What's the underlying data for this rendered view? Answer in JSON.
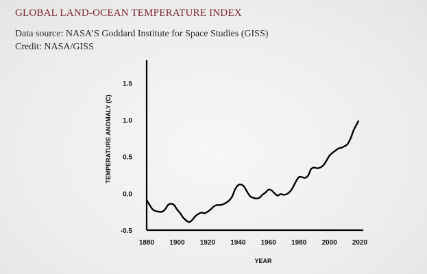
{
  "header": {
    "title": "GLOBAL LAND-OCEAN TEMPERATURE INDEX",
    "source": "Data source: NASA’S Goddard Institute for Space Studies  (GISS)",
    "credit": "Credit: NASA/GISS"
  },
  "colors": {
    "title": "#7a1f2b",
    "line": "#000000",
    "axis": "#000000"
  },
  "chart_data": {
    "type": "line",
    "title": "",
    "xlabel": "YEAR",
    "ylabel": "TEMPERATURE ANOMALY (C)",
    "xlim": [
      1880,
      2020
    ],
    "ylim": [
      -0.5,
      1.5
    ],
    "xticks": [
      "1880",
      "1900",
      "1920",
      "1940",
      "1960",
      "1980",
      "2000",
      "2020"
    ],
    "yticks": [
      "-0.5",
      "0.0",
      "0.5",
      "1.0",
      "1.5"
    ],
    "grid": false,
    "series": [
      {
        "x": [
          1880,
          1882,
          1884,
          1886,
          1888,
          1890,
          1892,
          1894,
          1896,
          1898,
          1900,
          1902,
          1904,
          1906,
          1908,
          1910,
          1912,
          1914,
          1916,
          1918,
          1920,
          1922,
          1924,
          1926,
          1928,
          1930,
          1932,
          1934,
          1936,
          1938,
          1940,
          1942,
          1944,
          1946,
          1948,
          1950,
          1952,
          1954,
          1956,
          1958,
          1960,
          1962,
          1964,
          1966,
          1968,
          1970,
          1972,
          1974,
          1976,
          1978,
          1980,
          1982,
          1984,
          1986,
          1988,
          1990,
          1992,
          1994,
          1996,
          1998,
          2000,
          2002,
          2004,
          2006,
          2008,
          2010,
          2012,
          2014,
          2016,
          2018,
          2019
        ],
        "y": [
          -0.09,
          -0.16,
          -0.22,
          -0.24,
          -0.25,
          -0.25,
          -0.22,
          -0.16,
          -0.14,
          -0.16,
          -0.22,
          -0.27,
          -0.33,
          -0.37,
          -0.39,
          -0.36,
          -0.31,
          -0.28,
          -0.26,
          -0.27,
          -0.25,
          -0.22,
          -0.18,
          -0.16,
          -0.16,
          -0.15,
          -0.13,
          -0.1,
          -0.05,
          0.05,
          0.11,
          0.12,
          0.09,
          0.02,
          -0.04,
          -0.06,
          -0.07,
          -0.06,
          -0.02,
          0.01,
          0.05,
          0.04,
          0.0,
          -0.03,
          -0.01,
          -0.02,
          -0.01,
          0.02,
          0.08,
          0.16,
          0.22,
          0.22,
          0.21,
          0.24,
          0.33,
          0.35,
          0.34,
          0.35,
          0.38,
          0.44,
          0.51,
          0.55,
          0.58,
          0.61,
          0.62,
          0.64,
          0.67,
          0.75,
          0.86,
          0.94,
          0.98
        ]
      }
    ]
  }
}
